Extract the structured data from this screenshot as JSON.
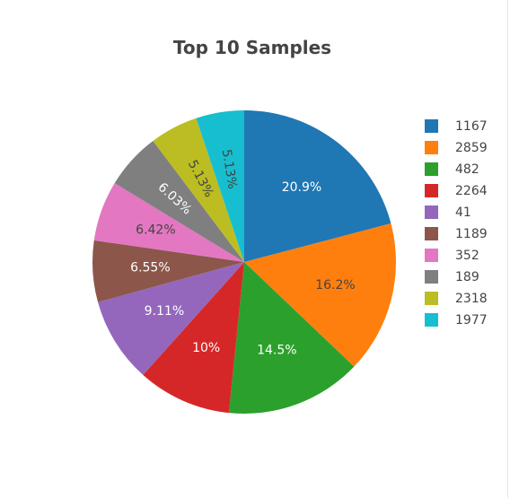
{
  "chart_data": {
    "type": "pie",
    "title": "Top 10 Samples",
    "slices": [
      {
        "label": "1167",
        "percent": 20.9,
        "display": "20.9%",
        "color": "#1f77b4",
        "text_color": "#ffffff"
      },
      {
        "label": "2859",
        "percent": 16.2,
        "display": "16.2%",
        "color": "#ff7f0e",
        "text_color": "#444444"
      },
      {
        "label": "482",
        "percent": 14.5,
        "display": "14.5%",
        "color": "#2ca02c",
        "text_color": "#ffffff"
      },
      {
        "label": "2264",
        "percent": 10.0,
        "display": "10%",
        "color": "#d62728",
        "text_color": "#ffffff"
      },
      {
        "label": "41",
        "percent": 9.11,
        "display": "9.11%",
        "color": "#9467bd",
        "text_color": "#ffffff"
      },
      {
        "label": "1189",
        "percent": 6.55,
        "display": "6.55%",
        "color": "#8c564b",
        "text_color": "#ffffff"
      },
      {
        "label": "352",
        "percent": 6.42,
        "display": "6.42%",
        "color": "#e377c2",
        "text_color": "#444444"
      },
      {
        "label": "189",
        "percent": 6.03,
        "display": "6.03%",
        "color": "#7f7f7f",
        "text_color": "#ffffff"
      },
      {
        "label": "2318",
        "percent": 5.13,
        "display": "5.13%",
        "color": "#bcbd22",
        "text_color": "#444444"
      },
      {
        "label": "1977",
        "percent": 5.13,
        "display": "5.13%",
        "color": "#17becf",
        "text_color": "#444444"
      }
    ],
    "direction": "clockwise",
    "legend_placement": "right"
  }
}
